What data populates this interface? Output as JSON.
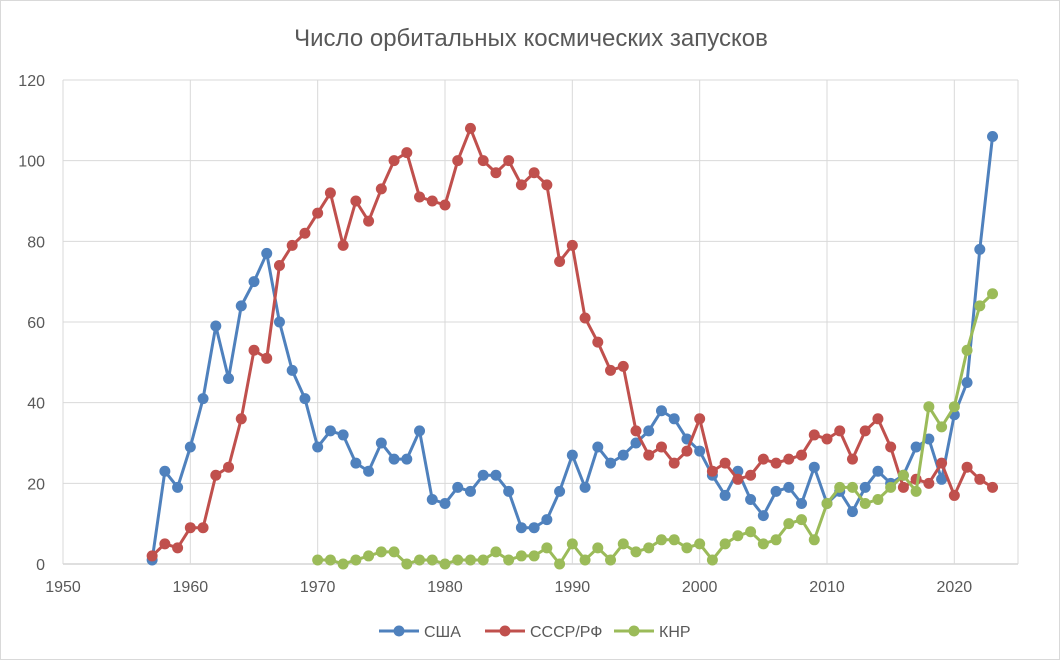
{
  "chart_data": {
    "type": "line",
    "title": "Число орбитальных космических запусков",
    "xlabel": "",
    "ylabel": "",
    "xlim": [
      1950,
      2025
    ],
    "ylim": [
      0,
      120
    ],
    "x_ticks": [
      1950,
      1960,
      1970,
      1980,
      1990,
      2000,
      2010,
      2020
    ],
    "y_ticks": [
      0,
      20,
      40,
      60,
      80,
      100,
      120
    ],
    "grid": true,
    "legend_position": "bottom",
    "series": [
      {
        "name": "США",
        "color": "#4F81BD",
        "start_year": 1957,
        "values": [
          1,
          23,
          19,
          29,
          41,
          59,
          46,
          64,
          70,
          77,
          60,
          48,
          41,
          29,
          33,
          32,
          25,
          23,
          30,
          26,
          26,
          33,
          16,
          15,
          19,
          18,
          22,
          22,
          18,
          9,
          9,
          11,
          18,
          27,
          19,
          29,
          25,
          27,
          30,
          33,
          38,
          36,
          31,
          28,
          22,
          17,
          23,
          16,
          12,
          18,
          19,
          15,
          24,
          15,
          18,
          13,
          19,
          23,
          20,
          22,
          29,
          31,
          21,
          37,
          45,
          78,
          106
        ]
      },
      {
        "name": "СССР/РФ",
        "color": "#C0504D",
        "start_year": 1957,
        "values": [
          2,
          5,
          4,
          9,
          9,
          22,
          24,
          36,
          53,
          51,
          74,
          79,
          82,
          87,
          92,
          79,
          90,
          85,
          93,
          100,
          102,
          91,
          90,
          89,
          100,
          108,
          100,
          97,
          100,
          94,
          97,
          94,
          75,
          79,
          61,
          55,
          48,
          49,
          33,
          27,
          29,
          25,
          28,
          36,
          23,
          25,
          21,
          22,
          26,
          25,
          26,
          27,
          32,
          31,
          33,
          26,
          33,
          36,
          29,
          19,
          21,
          20,
          25,
          17,
          24,
          21,
          19
        ]
      },
      {
        "name": "КНР",
        "color": "#9BBB59",
        "start_year": 1970,
        "values": [
          1,
          1,
          0,
          1,
          2,
          3,
          3,
          0,
          1,
          1,
          0,
          1,
          1,
          1,
          3,
          1,
          2,
          2,
          4,
          0,
          5,
          1,
          4,
          1,
          5,
          3,
          4,
          6,
          6,
          4,
          5,
          1,
          5,
          7,
          8,
          5,
          6,
          10,
          11,
          6,
          15,
          19,
          19,
          15,
          16,
          19,
          22,
          18,
          39,
          34,
          39,
          53,
          64,
          67
        ]
      }
    ]
  }
}
